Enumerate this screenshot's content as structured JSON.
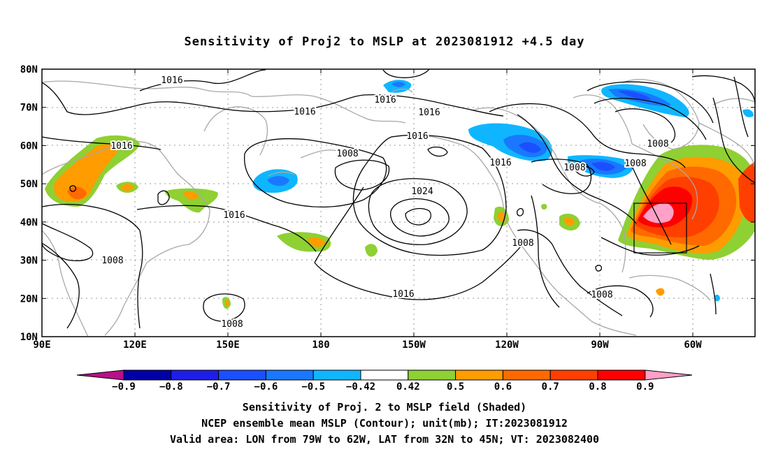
{
  "title": "Sensitivity of Proj2 to MSLP at 2023081912 +4.5 day",
  "lat_labels": [
    "80N",
    "70N",
    "60N",
    "50N",
    "40N",
    "30N",
    "20N",
    "10N"
  ],
  "lon_labels": [
    "90E",
    "120E",
    "150E",
    "180",
    "150W",
    "120W",
    "90W",
    "60W"
  ],
  "contour_labels": [
    {
      "text": "1016"
    },
    {
      "text": "1016"
    },
    {
      "text": "1016"
    },
    {
      "text": "1016"
    },
    {
      "text": "1016"
    },
    {
      "text": "1008"
    },
    {
      "text": "1016"
    },
    {
      "text": "1024"
    },
    {
      "text": "1016"
    },
    {
      "text": "1008"
    },
    {
      "text": "1016"
    },
    {
      "text": "1008"
    },
    {
      "text": "1008"
    },
    {
      "text": "1016"
    },
    {
      "text": "1008"
    },
    {
      "text": "1008"
    },
    {
      "text": "1008"
    },
    {
      "text": "1008"
    }
  ],
  "colorbar": {
    "colors": [
      "#0000a6",
      "#1e1ee8",
      "#1a50ff",
      "#1a78ff",
      "#0fb6ff",
      "#ffffff",
      "#8fd033",
      "#ff9c00",
      "#ff6a00",
      "#ff3f00",
      "#ff0000"
    ],
    "under_color": "#b80f8a",
    "over_color": "#ffa0c8",
    "labels": [
      "−0.9",
      "−0.8",
      "−0.7",
      "−0.6",
      "−0.5",
      "−0.42",
      "0.42",
      "0.5",
      "0.6",
      "0.7",
      "0.8",
      "0.9"
    ]
  },
  "valid_area": {
    "lon": [
      "79W",
      "62W"
    ],
    "lat": [
      "32N",
      "45N"
    ]
  },
  "captions": [
    "Sensitivity of Proj. 2 to MSLP field (Shaded)",
    "NCEP ensemble mean MSLP (Contour); unit(mb); IT:2023081912",
    "Valid area: LON from 79W to 62W, LAT from 32N to 45N; VT: 2023082400"
  ]
}
